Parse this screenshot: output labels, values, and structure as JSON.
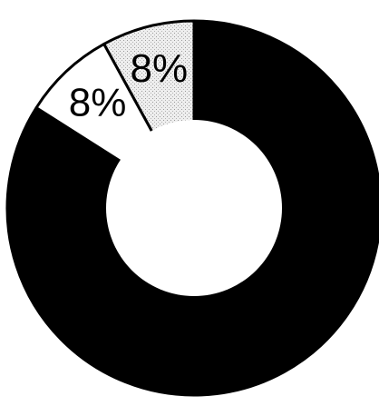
{
  "chart_data": {
    "type": "pie",
    "variant": "donut",
    "title": "",
    "slices": [
      {
        "label": "",
        "value": 84,
        "value_label": "",
        "color": "#000000"
      },
      {
        "label": "",
        "value": 8,
        "value_label": "8%",
        "color": "#ffffff"
      },
      {
        "label": "",
        "value": 8,
        "value_label": "8%",
        "color": "#e4e4e4"
      }
    ],
    "legend": "none",
    "start": "top",
    "direction": "clockwise"
  }
}
